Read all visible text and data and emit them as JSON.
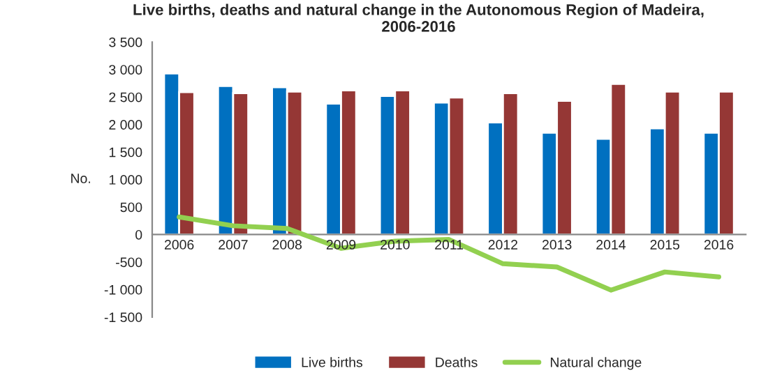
{
  "chart_data": {
    "type": "bar",
    "title": "Live births, deaths and natural change in the Autonomous Region of Madeira,\n2006-2016",
    "ylabel": "No.",
    "categories": [
      "2006",
      "2007",
      "2008",
      "2009",
      "2010",
      "2011",
      "2012",
      "2013",
      "2014",
      "2015",
      "2016"
    ],
    "series": [
      {
        "name": "Live births",
        "color": "#0070c0",
        "values": [
          2930,
          2700,
          2680,
          2380,
          2520,
          2400,
          2040,
          1850,
          1740,
          1930,
          1850
        ]
      },
      {
        "name": "Deaths",
        "color": "#953735",
        "values": [
          2590,
          2570,
          2600,
          2620,
          2620,
          2490,
          2570,
          2430,
          2740,
          2600,
          2600
        ]
      },
      {
        "name": "Natural change",
        "type": "line",
        "color": "#92d050",
        "values": [
          320,
          160,
          110,
          -250,
          -120,
          -90,
          -530,
          -590,
          -1010,
          -680,
          -770
        ]
      }
    ],
    "ylim": [
      -1500,
      3500
    ],
    "yticks": [
      {
        "value": -1500,
        "label": "-1 500"
      },
      {
        "value": -1000,
        "label": "-1 000"
      },
      -500,
      0,
      500,
      {
        "value": 1000,
        "label": "1 000"
      },
      {
        "value": 1500,
        "label": "1 500"
      },
      {
        "value": 2000,
        "label": "2 000"
      },
      {
        "value": 2500,
        "label": "2 500"
      },
      {
        "value": 3000,
        "label": "3 000"
      },
      {
        "value": 3500,
        "label": "3 500"
      }
    ],
    "grid": false,
    "legend": "bottom",
    "marker": "none"
  }
}
